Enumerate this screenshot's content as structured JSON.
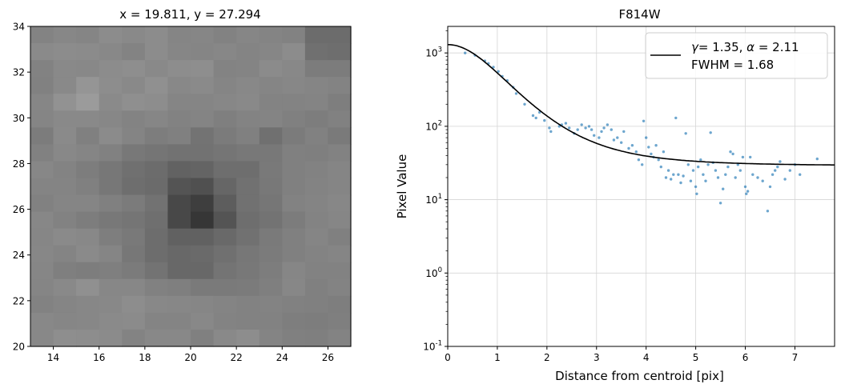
{
  "chart_data": [
    {
      "type": "heatmap",
      "title": "x = 19.811, y = 27.294",
      "xlabel": "",
      "ylabel": "",
      "xlim": [
        13,
        27
      ],
      "ylim": [
        20,
        34
      ],
      "xticks": [
        "14",
        "16",
        "18",
        "20",
        "22",
        "24",
        "26"
      ],
      "yticks": [
        "20",
        "22",
        "24",
        "26",
        "28",
        "30",
        "32",
        "34"
      ],
      "colormap": "gray",
      "cells": [
        [
          131,
          135,
          133,
          140,
          137,
          140,
          133,
          134,
          130,
          134,
          132,
          130,
          108,
          108
        ],
        [
          138,
          140,
          139,
          136,
          131,
          140,
          134,
          133,
          135,
          132,
          134,
          140,
          112,
          110
        ],
        [
          130,
          137,
          136,
          140,
          142,
          137,
          141,
          142,
          131,
          132,
          139,
          136,
          124,
          124
        ],
        [
          129,
          137,
          149,
          141,
          137,
          144,
          136,
          138,
          133,
          136,
          133,
          135,
          133,
          131
        ],
        [
          134,
          146,
          155,
          138,
          143,
          141,
          133,
          133,
          135,
          137,
          131,
          131,
          132,
          126
        ],
        [
          133,
          137,
          137,
          135,
          131,
          134,
          130,
          132,
          127,
          131,
          132,
          128,
          125,
          129
        ],
        [
          124,
          138,
          128,
          139,
          132,
          125,
          128,
          115,
          123,
          128,
          112,
          123,
          129,
          122
        ],
        [
          129,
          136,
          133,
          129,
          120,
          117,
          114,
          114,
          117,
          120,
          120,
          128,
          127,
          130
        ],
        [
          135,
          131,
          125,
          119,
          112,
          108,
          98,
          100,
          110,
          110,
          121,
          128,
          130,
          133
        ],
        [
          132,
          132,
          128,
          119,
          110,
          107,
          84,
          80,
          102,
          113,
          120,
          128,
          131,
          133
        ],
        [
          129,
          133,
          133,
          128,
          123,
          114,
          72,
          62,
          93,
          113,
          118,
          130,
          132,
          135
        ],
        [
          135,
          130,
          125,
          120,
          117,
          111,
          72,
          54,
          84,
          110,
          115,
          124,
          131,
          134
        ],
        [
          134,
          138,
          136,
          126,
          121,
          109,
          97,
          97,
          105,
          113,
          122,
          128,
          133,
          128
        ],
        [
          135,
          132,
          138,
          133,
          119,
          109,
          104,
          106,
          112,
          119,
          123,
          128,
          131,
          133
        ],
        [
          134,
          127,
          125,
          127,
          123,
          115,
          104,
          104,
          116,
          120,
          125,
          134,
          130,
          130
        ],
        [
          133,
          137,
          144,
          135,
          135,
          129,
          127,
          122,
          122,
          123,
          127,
          135,
          128,
          131
        ],
        [
          130,
          133,
          135,
          136,
          141,
          136,
          135,
          134,
          132,
          130,
          131,
          129,
          128,
          126
        ],
        [
          136,
          134,
          135,
          138,
          139,
          132,
          132,
          136,
          131,
          130,
          130,
          126,
          125,
          127
        ],
        [
          136,
          142,
          141,
          139,
          131,
          136,
          136,
          128,
          137,
          141,
          132,
          128,
          127,
          131
        ]
      ]
    },
    {
      "type": "scatter",
      "title": "F814W",
      "xlabel": "Distance from centroid [pix]",
      "ylabel": "Pixel Value",
      "xlim": [
        0,
        7.8
      ],
      "ylim": [
        0.1,
        2300
      ],
      "yscale": "log",
      "xticks": [
        "0",
        "1",
        "2",
        "3",
        "4",
        "5",
        "6",
        "7"
      ],
      "yticks": [
        "10",
        "10",
        "10",
        "10",
        "10"
      ],
      "ytick_exponents": [
        "-1",
        "0",
        "1",
        "2",
        "3"
      ],
      "grid": true,
      "legend_placement": "upper right",
      "legend": {
        "line1_prefix": "γ",
        "line1_mid": "= 1.35, ",
        "line1_alpha": "α",
        "line1_suffix": " = 2.11",
        "line2": "FWHM = 1.68"
      },
      "fit_params": {
        "gamma": 1.35,
        "alpha": 2.11,
        "amplitude": 1270,
        "background": 29
      },
      "point_color": "#1f77b4",
      "line_color": "#000000",
      "points": [
        [
          0.35,
          1000
        ],
        [
          0.55,
          930
        ],
        [
          0.75,
          780
        ],
        [
          0.82,
          720
        ],
        [
          0.92,
          640
        ],
        [
          1.02,
          560
        ],
        [
          1.1,
          480
        ],
        [
          1.2,
          420
        ],
        [
          1.32,
          340
        ],
        [
          1.38,
          280
        ],
        [
          1.55,
          200
        ],
        [
          1.72,
          140
        ],
        [
          1.78,
          130
        ],
        [
          1.85,
          155
        ],
        [
          1.95,
          120
        ],
        [
          2.05,
          95
        ],
        [
          2.08,
          85
        ],
        [
          2.25,
          100
        ],
        [
          2.3,
          105
        ],
        [
          2.38,
          110
        ],
        [
          2.45,
          95
        ],
        [
          2.55,
          80
        ],
        [
          2.62,
          90
        ],
        [
          2.7,
          105
        ],
        [
          2.78,
          95
        ],
        [
          2.85,
          100
        ],
        [
          2.9,
          90
        ],
        [
          2.95,
          75
        ],
        [
          3.05,
          70
        ],
        [
          3.1,
          85
        ],
        [
          3.15,
          95
        ],
        [
          3.22,
          105
        ],
        [
          3.3,
          90
        ],
        [
          3.35,
          65
        ],
        [
          3.42,
          70
        ],
        [
          3.5,
          60
        ],
        [
          3.55,
          85
        ],
        [
          3.65,
          50
        ],
        [
          3.72,
          55
        ],
        [
          3.8,
          45
        ],
        [
          3.85,
          35
        ],
        [
          3.92,
          30
        ],
        [
          3.95,
          118
        ],
        [
          4.0,
          70
        ],
        [
          4.05,
          52
        ],
        [
          4.1,
          42
        ],
        [
          4.15,
          38
        ],
        [
          4.2,
          55
        ],
        [
          4.25,
          35
        ],
        [
          4.3,
          28
        ],
        [
          4.35,
          45
        ],
        [
          4.4,
          20
        ],
        [
          4.45,
          25
        ],
        [
          4.5,
          19
        ],
        [
          4.55,
          22
        ],
        [
          4.6,
          130
        ],
        [
          4.65,
          22
        ],
        [
          4.7,
          17
        ],
        [
          4.75,
          21
        ],
        [
          4.8,
          80
        ],
        [
          4.85,
          30
        ],
        [
          4.9,
          18
        ],
        [
          4.95,
          25
        ],
        [
          5.0,
          15
        ],
        [
          5.02,
          12
        ],
        [
          5.05,
          28
        ],
        [
          5.1,
          35
        ],
        [
          5.15,
          22
        ],
        [
          5.2,
          18
        ],
        [
          5.25,
          30
        ],
        [
          5.3,
          82
        ],
        [
          5.35,
          32
        ],
        [
          5.4,
          25
        ],
        [
          5.45,
          20
        ],
        [
          5.5,
          9
        ],
        [
          5.55,
          14
        ],
        [
          5.6,
          22
        ],
        [
          5.65,
          28
        ],
        [
          5.7,
          45
        ],
        [
          5.75,
          42
        ],
        [
          5.8,
          20
        ],
        [
          5.85,
          30
        ],
        [
          5.9,
          25
        ],
        [
          5.95,
          38
        ],
        [
          6.0,
          15
        ],
        [
          6.02,
          12
        ],
        [
          6.05,
          13
        ],
        [
          6.1,
          38
        ],
        [
          6.15,
          22
        ],
        [
          6.25,
          20
        ],
        [
          6.35,
          18
        ],
        [
          6.45,
          7
        ],
        [
          6.5,
          15
        ],
        [
          6.55,
          22
        ],
        [
          6.6,
          25
        ],
        [
          6.65,
          28
        ],
        [
          6.7,
          33
        ],
        [
          6.8,
          19
        ],
        [
          6.9,
          25
        ],
        [
          7.0,
          30
        ],
        [
          7.1,
          22
        ],
        [
          7.45,
          36
        ]
      ]
    }
  ]
}
